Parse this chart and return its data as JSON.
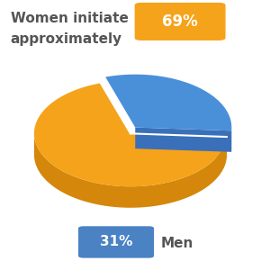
{
  "values": [
    69,
    31
  ],
  "colors_top": [
    "#F5A31A",
    "#4A90D9"
  ],
  "color_orange_side": "#D4870A",
  "color_blue_side": "#3A70B9",
  "startangle": 108,
  "title_line1": "Women initiate",
  "title_line2": "approximately",
  "badge_69_text": "69%",
  "badge_31_text": "31%",
  "men_label": "Men",
  "badge_orange_color": "#F5A31A",
  "badge_blue_color": "#4A82C4",
  "background_color": "#ffffff",
  "text_color": "#555555",
  "white": "#ffffff",
  "title_fontsize": 11,
  "badge_fontsize": 12,
  "men_fontsize": 11
}
